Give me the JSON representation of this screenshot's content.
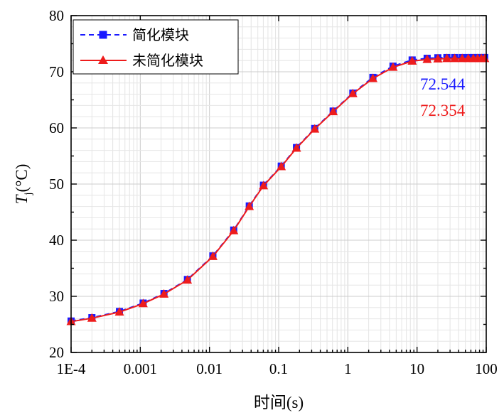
{
  "chart_data": {
    "type": "line",
    "xscale": "log",
    "xlim": [
      0.0001,
      100
    ],
    "ylim": [
      20,
      80
    ],
    "xlabel": "时间(s)",
    "ylabel": {
      "main": "T",
      "sub": "j",
      "unit": "(°C)"
    },
    "x_ticks": [
      {
        "value": 0.0001,
        "label": "1E-4"
      },
      {
        "value": 0.001,
        "label": "0.001"
      },
      {
        "value": 0.01,
        "label": "0.01"
      },
      {
        "value": 0.1,
        "label": "0.1"
      },
      {
        "value": 1,
        "label": "1"
      },
      {
        "value": 10,
        "label": "10"
      },
      {
        "value": 100,
        "label": "100"
      }
    ],
    "y_ticks": [
      {
        "value": 20,
        "label": "20"
      },
      {
        "value": 30,
        "label": "30"
      },
      {
        "value": 40,
        "label": "40"
      },
      {
        "value": 50,
        "label": "50"
      },
      {
        "value": 60,
        "label": "60"
      },
      {
        "value": 70,
        "label": "70"
      },
      {
        "value": 80,
        "label": "80"
      }
    ],
    "grid": true,
    "legend_position": "top-left",
    "series": [
      {
        "name": "简化模块",
        "color": "#1a1aff",
        "line_style": "dashed",
        "marker": "square",
        "x": [
          0.0001,
          0.0002,
          0.0005,
          0.0011,
          0.0022,
          0.0048,
          0.0112,
          0.0224,
          0.0376,
          0.0603,
          0.109,
          0.181,
          0.332,
          0.613,
          1.18,
          2.3,
          4.5,
          8.5,
          14,
          20,
          27,
          35,
          45,
          55,
          65,
          75,
          85,
          95
        ],
        "values": [
          25.6,
          26.2,
          27.3,
          28.8,
          30.5,
          33.0,
          37.2,
          41.8,
          46.1,
          49.8,
          53.2,
          56.5,
          59.9,
          63.0,
          66.2,
          69.0,
          71.0,
          72.1,
          72.4,
          72.5,
          72.54,
          72.54,
          72.54,
          72.54,
          72.54,
          72.54,
          72.54,
          72.544
        ]
      },
      {
        "name": "未简化模块",
        "color": "#ee1c1c",
        "line_style": "solid",
        "marker": "triangle",
        "x": [
          0.0001,
          0.0002,
          0.0005,
          0.0011,
          0.0022,
          0.0048,
          0.0112,
          0.0224,
          0.0376,
          0.0603,
          0.109,
          0.181,
          0.332,
          0.613,
          1.18,
          2.3,
          4.5,
          8.5,
          14,
          20,
          27,
          35,
          45,
          55,
          65,
          75,
          85,
          95
        ],
        "values": [
          25.5,
          26.1,
          27.2,
          28.7,
          30.4,
          32.9,
          37.1,
          41.7,
          46.0,
          49.7,
          53.1,
          56.4,
          59.8,
          62.9,
          66.1,
          68.8,
          70.8,
          71.9,
          72.2,
          72.3,
          72.35,
          72.35,
          72.35,
          72.35,
          72.35,
          72.35,
          72.35,
          72.354
        ]
      }
    ],
    "annotations": [
      {
        "text": "72.544",
        "color": "#1a1aff"
      },
      {
        "text": "72.354",
        "color": "#ee1c1c"
      }
    ]
  }
}
